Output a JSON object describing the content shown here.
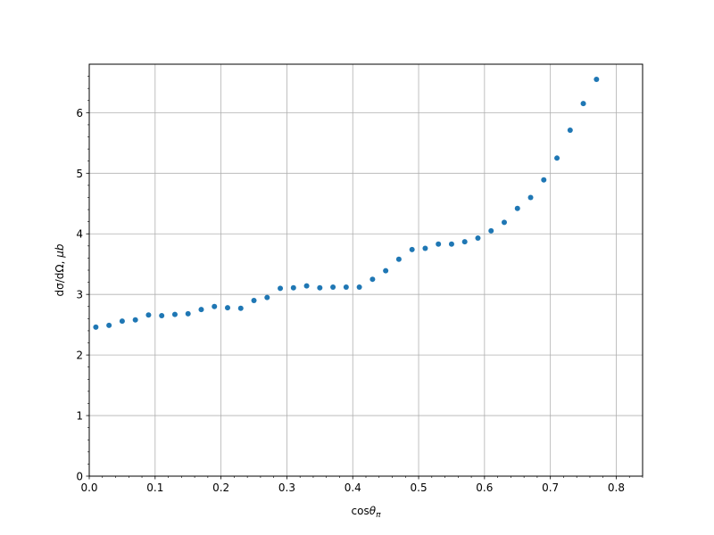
{
  "chart_data": {
    "type": "scatter",
    "title": "",
    "xlabel_main": "cos",
    "xlabel_sym": "θ",
    "xlabel_sub": "π",
    "ylabel_main": "dσ/dΩ, ",
    "ylabel_unit": "μb",
    "xlim": [
      0.0,
      0.84
    ],
    "ylim": [
      0,
      6.8
    ],
    "xticks": [
      0.0,
      0.1,
      0.2,
      0.3,
      0.4,
      0.5,
      0.6,
      0.7,
      0.8
    ],
    "xtick_labels": [
      "0.0",
      "0.1",
      "0.2",
      "0.3",
      "0.4",
      "0.5",
      "0.6",
      "0.7",
      "0.8"
    ],
    "yticks": [
      0,
      1,
      2,
      3,
      4,
      5,
      6
    ],
    "ytick_labels": [
      "0",
      "1",
      "2",
      "3",
      "4",
      "5",
      "6"
    ],
    "grid": true,
    "marker_color": "#1f77b4",
    "series": [
      {
        "x": [
          0.01,
          0.03,
          0.05,
          0.07,
          0.09,
          0.11,
          0.13,
          0.15,
          0.17,
          0.19,
          0.21,
          0.23,
          0.25,
          0.27,
          0.29,
          0.31,
          0.33,
          0.35,
          0.37,
          0.39,
          0.41,
          0.43,
          0.45,
          0.47,
          0.49,
          0.51,
          0.53,
          0.55,
          0.57,
          0.59,
          0.61,
          0.63,
          0.65,
          0.67,
          0.69,
          0.71,
          0.73,
          0.75,
          0.77
        ],
        "y": [
          2.46,
          2.49,
          2.56,
          2.58,
          2.66,
          2.65,
          2.67,
          2.68,
          2.75,
          2.8,
          2.78,
          2.77,
          2.9,
          2.95,
          3.1,
          3.11,
          3.14,
          3.11,
          3.12,
          3.12,
          3.12,
          3.25,
          3.39,
          3.58,
          3.74,
          3.76,
          3.83,
          3.83,
          3.87,
          3.93,
          4.05,
          4.19,
          4.42,
          4.6,
          4.89,
          5.25,
          5.71,
          6.15,
          6.55
        ]
      }
    ]
  }
}
